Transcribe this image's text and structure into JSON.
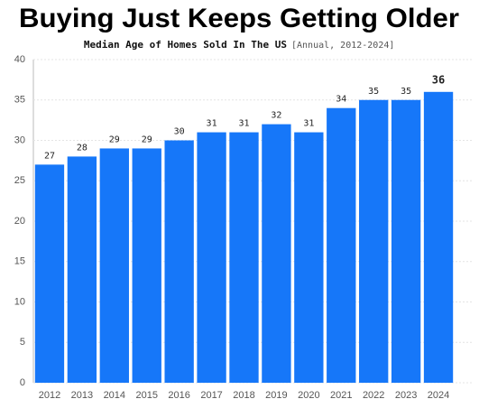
{
  "chart_data": {
    "type": "bar",
    "title": "Buying Just Keeps Getting Older",
    "subtitle": "Median Age of Homes Sold In The US",
    "subtitle_note": "[Annual, 2012-2024]",
    "categories": [
      "2012",
      "2013",
      "2014",
      "2015",
      "2016",
      "2017",
      "2018",
      "2019",
      "2020",
      "2021",
      "2022",
      "2023",
      "2024"
    ],
    "values": [
      27,
      28,
      29,
      29,
      30,
      31,
      31,
      32,
      31,
      34,
      35,
      35,
      36
    ],
    "color": "#1677f9",
    "ylim": [
      0,
      40
    ],
    "yticks": [
      0,
      5,
      10,
      15,
      20,
      25,
      30,
      35,
      40
    ],
    "grid": true
  }
}
